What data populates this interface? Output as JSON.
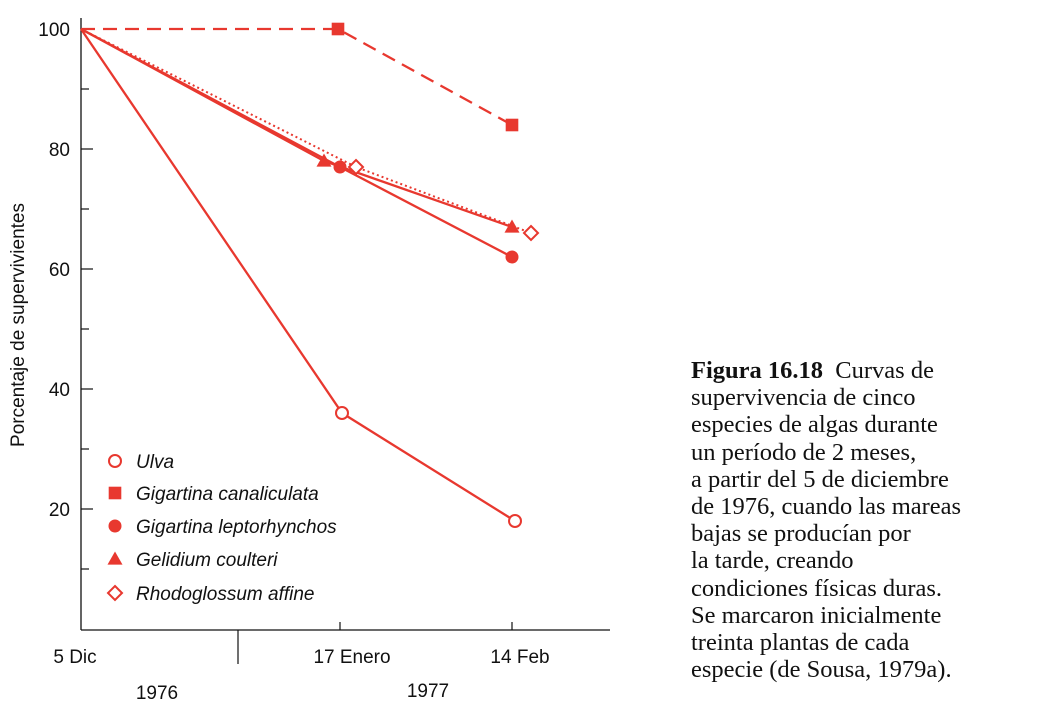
{
  "chart_data": {
    "type": "line",
    "ylabel": "Porcentaje de supervivientes",
    "xlabel": "",
    "ylim": [
      0,
      100
    ],
    "yticks": [
      20,
      40,
      60,
      80,
      100
    ],
    "x_ticks": [
      {
        "label": "5 Dic",
        "day": 0
      },
      {
        "label": "17 Enero",
        "day": 43
      },
      {
        "label": "14 Feb",
        "day": 71
      }
    ],
    "year_labels": [
      "1976",
      "1977"
    ],
    "grid": false,
    "legend_position": "bottom-left",
    "color": "#e8382f",
    "series": [
      {
        "name": "Ulva",
        "marker": "circle-open",
        "line": "solid",
        "points": [
          {
            "x": "5 Dic",
            "y": 100
          },
          {
            "x": "17 Enero",
            "y": 36
          },
          {
            "x": "14 Feb",
            "y": 18
          }
        ]
      },
      {
        "name": "Gigartina canaliculata",
        "marker": "square-filled",
        "line": "dashed",
        "points": [
          {
            "x": "5 Dic",
            "y": 100
          },
          {
            "x": "17 Enero",
            "y": 100
          },
          {
            "x": "14 Feb",
            "y": 84
          }
        ]
      },
      {
        "name": "Gigartina leptorhynchos",
        "marker": "circle-filled",
        "line": "solid",
        "points": [
          {
            "x": "5 Dic",
            "y": 100
          },
          {
            "x": "17 Enero",
            "y": 77
          },
          {
            "x": "14 Feb",
            "y": 62
          }
        ]
      },
      {
        "name": "Gelidium coulteri",
        "marker": "triangle-filled",
        "line": "solid",
        "points": [
          {
            "x": "5 Dic",
            "y": 100
          },
          {
            "x": "17 Enero",
            "y": 78
          },
          {
            "x": "14 Feb",
            "y": 67
          }
        ]
      },
      {
        "name": "Rhodoglossum affine",
        "marker": "diamond-open",
        "line": "dotted",
        "points": [
          {
            "x": "5 Dic",
            "y": 100
          },
          {
            "x": "17 Enero",
            "y": 77
          },
          {
            "x": "14 Feb",
            "y": 66
          }
        ]
      }
    ]
  },
  "caption": {
    "number": "Figura 16.18",
    "lines": [
      "Curvas de",
      "supervivencia de cinco",
      "especies de algas durante",
      "un período de 2 meses,",
      "a partir del 5 de diciembre",
      "de 1976, cuando las mareas",
      "bajas se producían por",
      "la tarde, creando",
      "condiciones físicas duras.",
      "Se marcaron inicialmente",
      "treinta plantas de cada",
      "especie (de Sousa, 1979a)."
    ]
  }
}
